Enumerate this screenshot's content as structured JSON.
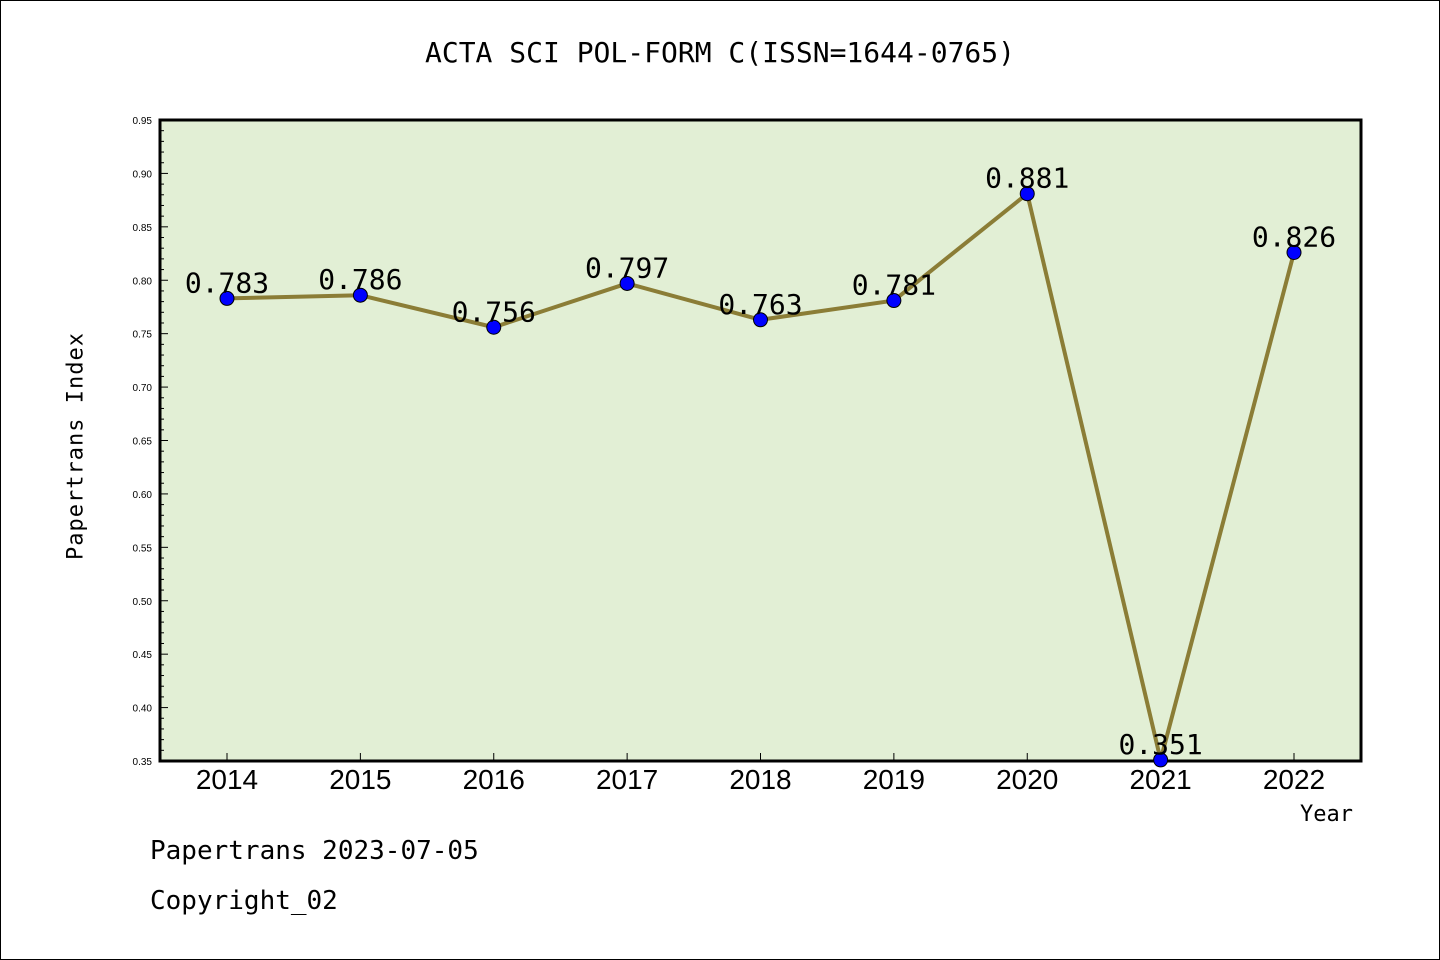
{
  "title": "ACTA SCI POL-FORM C(ISSN=1644-0765)",
  "footer": {
    "line1": "Papertrans 2023-07-05",
    "line2": "Copyright_02"
  },
  "colors": {
    "plot_background": "#e2efd5",
    "line": "#8b7d36",
    "marker": "#0000ff"
  },
  "chart_data": {
    "type": "line",
    "xlabel": "Year",
    "ylabel": "Papertrans Index",
    "x": [
      "2014",
      "2015",
      "2016",
      "2017",
      "2018",
      "2019",
      "2020",
      "2021",
      "2022"
    ],
    "series": [
      {
        "values": [
          0.783,
          0.786,
          0.756,
          0.797,
          0.763,
          0.781,
          0.881,
          0.351,
          0.826
        ]
      }
    ],
    "data_labels": [
      "0.783",
      "0.786",
      "0.756",
      "0.797",
      "0.763",
      "0.781",
      "0.881",
      "0.351",
      "0.826"
    ],
    "ylim": [
      0.35,
      0.95
    ],
    "yticks": [
      "0.35",
      "0.40",
      "0.45",
      "0.50",
      "0.55",
      "0.60",
      "0.65",
      "0.70",
      "0.75",
      "0.80",
      "0.85",
      "0.90",
      "0.95"
    ],
    "grid": false,
    "legend": "none"
  }
}
